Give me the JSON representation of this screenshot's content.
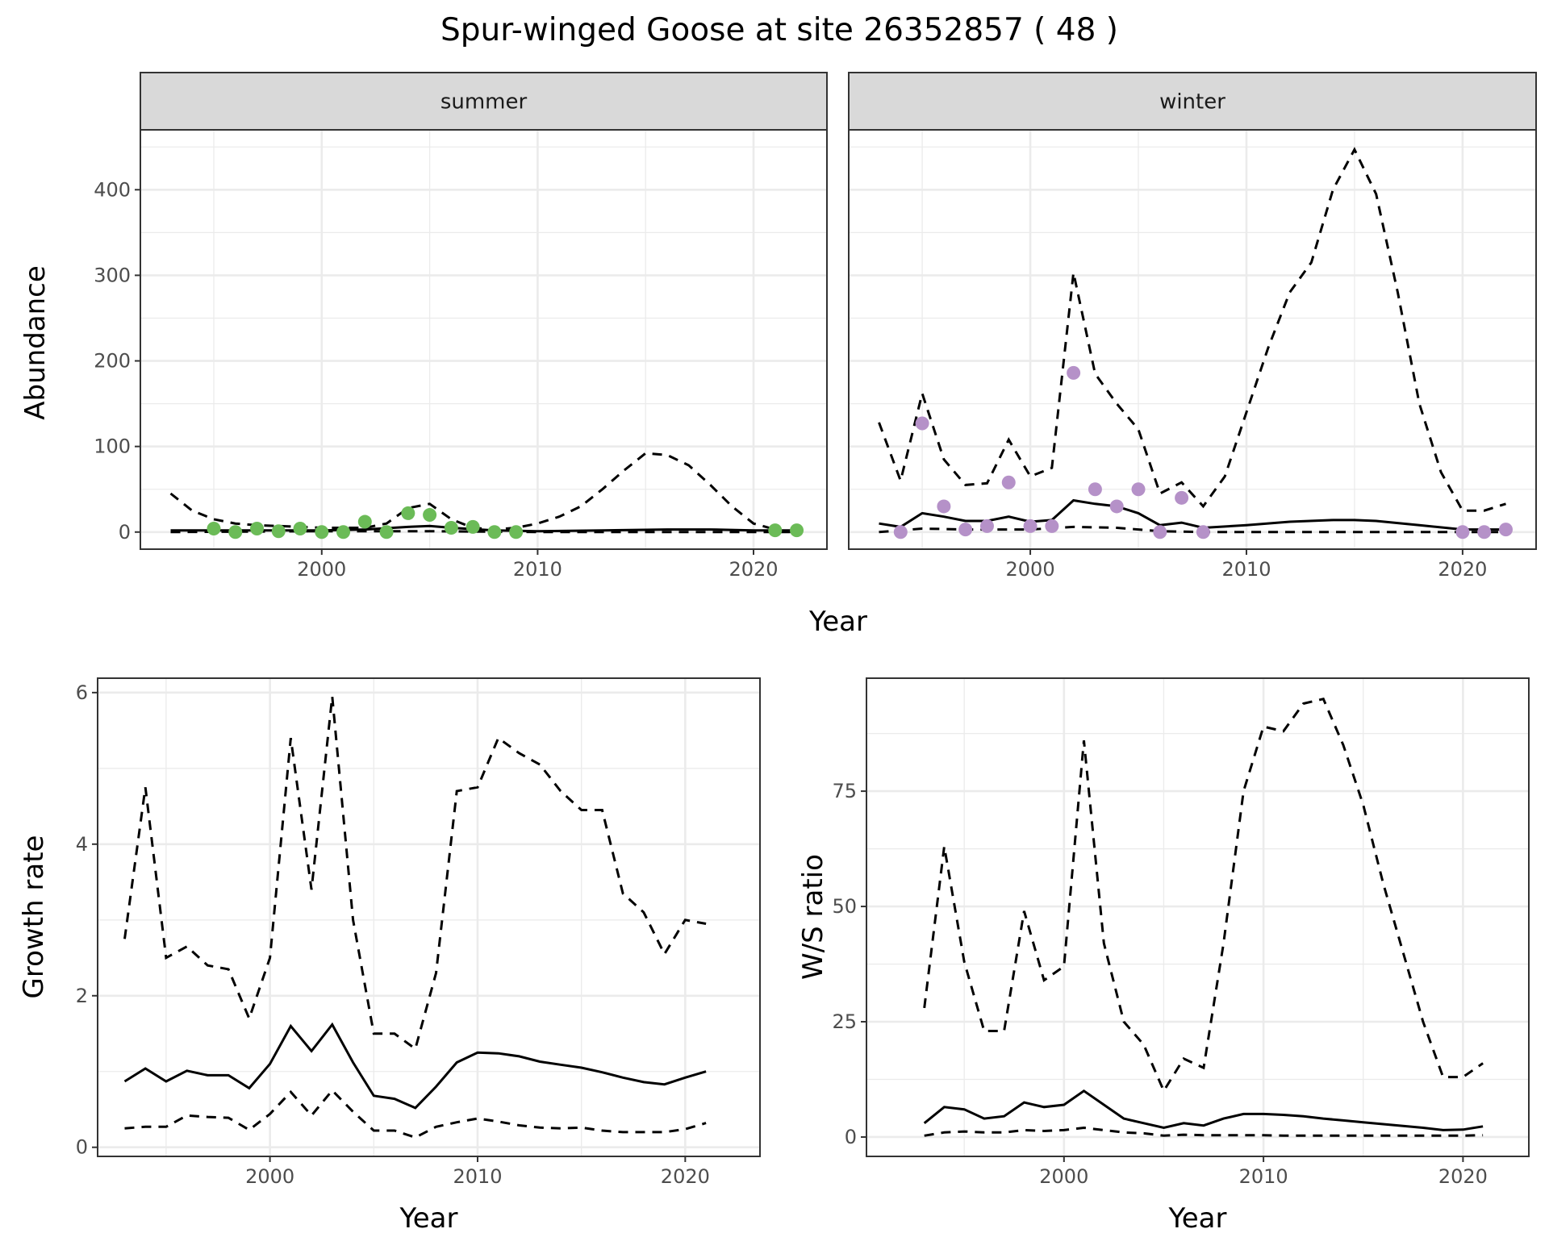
{
  "title": "Spur-winged Goose at site 26352857 ( 48 )",
  "chart_data": [
    {
      "type": "line",
      "facet": "summer",
      "xlabel": "Year",
      "ylabel": "Abundance",
      "xlim": [
        1991.6,
        2023.4
      ],
      "ylim": [
        -20,
        470
      ],
      "xticks": [
        2000,
        2010,
        2020
      ],
      "yticks": [
        0,
        100,
        200,
        300,
        400
      ],
      "point_color": "#6bbb57",
      "points": {
        "x": [
          1995,
          1996,
          1997,
          1998,
          1999,
          2000,
          2001,
          2002,
          2003,
          2004,
          2005,
          2006,
          2007,
          2008,
          2009,
          2021,
          2022
        ],
        "y": [
          4,
          0,
          4,
          1,
          4,
          0,
          0,
          12,
          0,
          22,
          20,
          5,
          6,
          0,
          0,
          2,
          2
        ]
      },
      "mean": {
        "x": [
          1993,
          1995,
          1998,
          2000,
          2002,
          2004,
          2005,
          2006,
          2008,
          2010,
          2013,
          2016,
          2018,
          2020,
          2022
        ],
        "y": [
          2,
          2,
          2,
          2,
          3,
          6,
          7,
          5,
          2,
          1,
          2,
          3,
          3,
          2,
          2
        ]
      },
      "upper": {
        "x": [
          1993,
          1994,
          1995,
          1996,
          1997,
          1998,
          2000,
          2002,
          2003,
          2004,
          2005,
          2006,
          2007,
          2008,
          2009,
          2010,
          2011,
          2012,
          2013,
          2014,
          2015,
          2016,
          2017,
          2018,
          2019,
          2020,
          2021
        ],
        "y": [
          45,
          25,
          15,
          10,
          8,
          7,
          5,
          5,
          10,
          28,
          33,
          15,
          5,
          3,
          5,
          10,
          18,
          30,
          50,
          72,
          92,
          90,
          78,
          55,
          30,
          10,
          3
        ]
      },
      "lower": {
        "x": [
          1993,
          2000,
          2005,
          2010,
          2022
        ],
        "y": [
          0,
          1,
          1,
          0,
          0
        ]
      }
    },
    {
      "type": "line",
      "facet": "winter",
      "xlabel": "Year",
      "ylabel": "Abundance",
      "xlim": [
        1991.6,
        2023.4
      ],
      "ylim": [
        -20,
        470
      ],
      "xticks": [
        2000,
        2010,
        2020
      ],
      "yticks": [
        0,
        100,
        200,
        300,
        400
      ],
      "point_color": "#b591c8",
      "points": {
        "x": [
          1994,
          1995,
          1996,
          1997,
          1998,
          1999,
          2000,
          2001,
          2002,
          2003,
          2004,
          2005,
          2006,
          2007,
          2008,
          2020,
          2021,
          2022
        ],
        "y": [
          0,
          127,
          30,
          3,
          7,
          58,
          7,
          7,
          186,
          50,
          30,
          50,
          0,
          40,
          0,
          0,
          0,
          3
        ]
      },
      "mean": {
        "x": [
          1993,
          1994,
          1995,
          1996,
          1997,
          1998,
          1999,
          2000,
          2001,
          2002,
          2003,
          2004,
          2005,
          2006,
          2007,
          2008,
          2010,
          2012,
          2014,
          2015,
          2016,
          2018,
          2020,
          2022
        ],
        "y": [
          10,
          6,
          22,
          18,
          13,
          13,
          18,
          12,
          14,
          37,
          33,
          30,
          22,
          8,
          11,
          5,
          8,
          12,
          14,
          14,
          13,
          8,
          3,
          3
        ]
      },
      "upper": {
        "x": [
          1993,
          1994,
          1995,
          1996,
          1997,
          1998,
          1999,
          2000,
          2001,
          2002,
          2003,
          2004,
          2005,
          2006,
          2007,
          2008,
          2009,
          2010,
          2011,
          2012,
          2013,
          2014,
          2015,
          2016,
          2017,
          2018,
          2019,
          2020,
          2021,
          2022
        ],
        "y": [
          128,
          60,
          162,
          85,
          55,
          57,
          108,
          65,
          75,
          303,
          185,
          150,
          120,
          45,
          58,
          30,
          65,
          140,
          215,
          280,
          315,
          400,
          447,
          395,
          280,
          150,
          70,
          25,
          25,
          33
        ]
      },
      "lower": {
        "x": [
          1993,
          1995,
          1997,
          2000,
          2002,
          2004,
          2006,
          2008,
          2022
        ],
        "y": [
          0,
          4,
          3,
          3,
          6,
          5,
          1,
          0,
          0
        ]
      }
    },
    {
      "type": "line",
      "xlabel": "Year",
      "ylabel": "Growth rate",
      "xlim": [
        1991.7,
        2023.6
      ],
      "ylim": [
        -0.12,
        6.19
      ],
      "xticks": [
        2000,
        2010,
        2020
      ],
      "yticks": [
        0,
        2,
        4,
        6
      ],
      "x": [
        1993,
        1994,
        1995,
        1996,
        1997,
        1998,
        1999,
        2000,
        2001,
        2002,
        2003,
        2004,
        2005,
        2006,
        2007,
        2008,
        2009,
        2010,
        2011,
        2012,
        2013,
        2014,
        2015,
        2016,
        2017,
        2018,
        2019,
        2020,
        2021
      ],
      "upper": [
        2.75,
        4.75,
        2.5,
        2.65,
        2.4,
        2.35,
        1.7,
        2.5,
        5.4,
        3.4,
        5.95,
        3.0,
        1.5,
        1.5,
        1.3,
        2.3,
        4.7,
        4.75,
        5.4,
        5.2,
        5.05,
        4.7,
        4.45,
        4.45,
        3.35,
        3.1,
        2.55,
        3.0,
        2.95
      ],
      "mean": [
        0.87,
        1.04,
        0.87,
        1.01,
        0.95,
        0.95,
        0.78,
        1.1,
        1.6,
        1.27,
        1.62,
        1.12,
        0.68,
        0.64,
        0.52,
        0.8,
        1.12,
        1.25,
        1.24,
        1.2,
        1.13,
        1.09,
        1.05,
        0.99,
        0.92,
        0.86,
        0.83,
        0.92,
        1.0
      ],
      "lower": [
        0.25,
        0.27,
        0.27,
        0.42,
        0.4,
        0.39,
        0.23,
        0.44,
        0.73,
        0.42,
        0.75,
        0.47,
        0.22,
        0.22,
        0.13,
        0.27,
        0.33,
        0.38,
        0.34,
        0.29,
        0.26,
        0.25,
        0.26,
        0.22,
        0.2,
        0.2,
        0.2,
        0.24,
        0.32
      ]
    },
    {
      "type": "line",
      "xlabel": "Year",
      "ylabel": "W/S ratio",
      "xlim": [
        1990.1,
        2023.3
      ],
      "ylim": [
        -4.2,
        99.5
      ],
      "xticks": [
        2000,
        2010,
        2020
      ],
      "yticks": [
        0,
        25,
        50,
        75
      ],
      "x": [
        1993,
        1994,
        1995,
        1996,
        1997,
        1998,
        1999,
        2000,
        2001,
        2002,
        2003,
        2004,
        2005,
        2006,
        2007,
        2008,
        2009,
        2010,
        2011,
        2012,
        2013,
        2014,
        2015,
        2016,
        2017,
        2018,
        2019,
        2020,
        2021
      ],
      "upper": [
        28,
        63,
        38,
        23,
        23,
        49,
        34,
        37,
        86,
        42,
        25,
        20,
        10,
        17,
        15,
        42,
        75,
        89,
        88,
        94,
        95,
        85,
        72,
        55,
        40,
        25,
        13,
        13,
        16
      ],
      "mean": [
        3,
        6.5,
        6,
        4,
        4.5,
        7.5,
        6.5,
        7,
        10,
        7,
        4,
        3,
        2,
        3,
        2.5,
        4,
        5,
        5,
        4.8,
        4.5,
        4,
        3.6,
        3.2,
        2.8,
        2.4,
        2,
        1.5,
        1.6,
        2.3
      ],
      "lower": [
        0.3,
        1,
        1.2,
        1,
        1,
        1.5,
        1.3,
        1.5,
        2,
        1.5,
        1,
        0.8,
        0.3,
        0.5,
        0.4,
        0.4,
        0.4,
        0.4,
        0.3,
        0.3,
        0.3,
        0.3,
        0.3,
        0.3,
        0.3,
        0.3,
        0.3,
        0.3,
        0.4
      ]
    }
  ]
}
